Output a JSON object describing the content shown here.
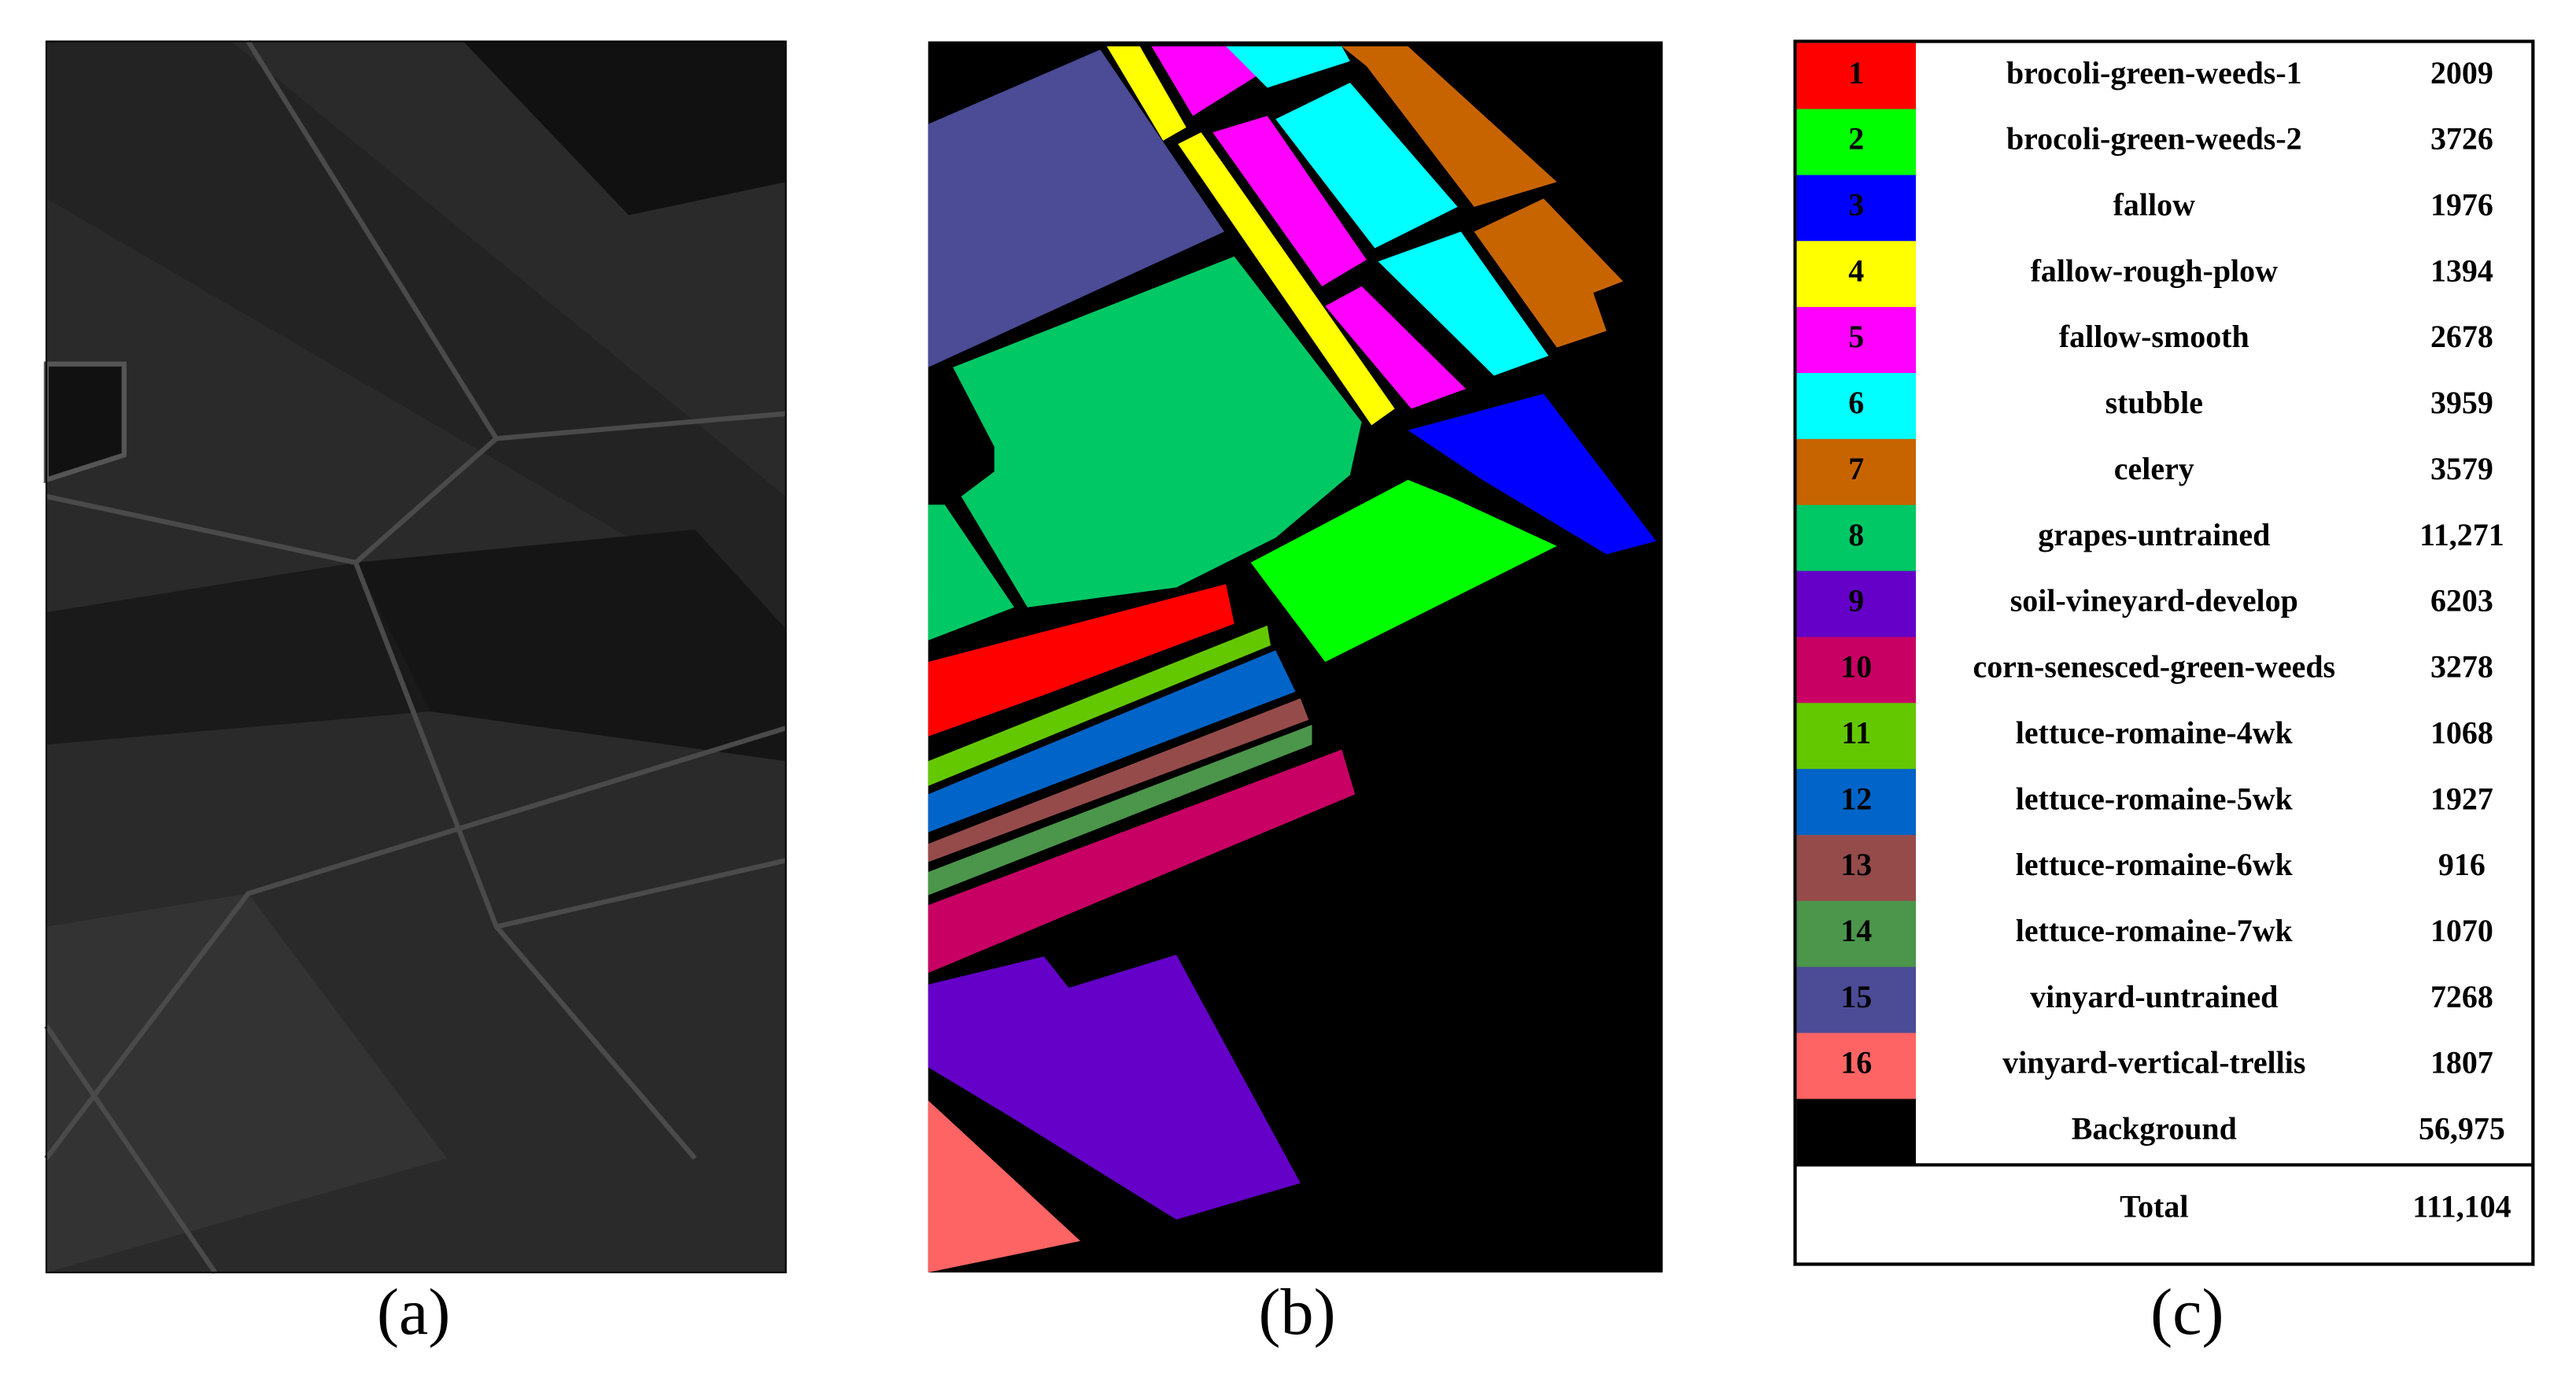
{
  "panels": [
    {
      "label": "(a)"
    },
    {
      "label": "(b)"
    },
    {
      "label": "(c)"
    }
  ],
  "table": {
    "rows": [
      {
        "id": "1",
        "name": "brocoli-green-weeds-1",
        "count": "2009",
        "color": "#ff0000"
      },
      {
        "id": "2",
        "name": "brocoli-green-weeds-2",
        "count": "3726",
        "color": "#00ff00"
      },
      {
        "id": "3",
        "name": "fallow",
        "count": "1976",
        "color": "#0000ff"
      },
      {
        "id": "4",
        "name": "fallow-rough-plow",
        "count": "1394",
        "color": "#ffff00"
      },
      {
        "id": "5",
        "name": "fallow-smooth",
        "count": "2678",
        "color": "#ff00ff"
      },
      {
        "id": "6",
        "name": "stubble",
        "count": "3959",
        "color": "#00ffff"
      },
      {
        "id": "7",
        "name": "celery",
        "count": "3579",
        "color": "#c86400"
      },
      {
        "id": "8",
        "name": "grapes-untrained",
        "count": "11,271",
        "color": "#00c864"
      },
      {
        "id": "9",
        "name": "soil-vineyard-develop",
        "count": "6203",
        "color": "#6400c8"
      },
      {
        "id": "10",
        "name": "corn-senesced-green-weeds",
        "count": "3278",
        "color": "#c80064"
      },
      {
        "id": "11",
        "name": "lettuce-romaine-4wk",
        "count": "1068",
        "color": "#64c800"
      },
      {
        "id": "12",
        "name": "lettuce-romaine-5wk",
        "count": "1927",
        "color": "#0064c8"
      },
      {
        "id": "13",
        "name": "lettuce-romaine-6wk",
        "count": "916",
        "color": "#964b4b"
      },
      {
        "id": "14",
        "name": "lettuce-romaine-7wk",
        "count": "1070",
        "color": "#4b964b"
      },
      {
        "id": "15",
        "name": "vinyard-untrained",
        "count": "7268",
        "color": "#4b4b96"
      },
      {
        "id": "16",
        "name": "vinyard-vertical-trellis",
        "count": "1807",
        "color": "#ff6464"
      }
    ],
    "background": {
      "name": "Background",
      "count": "56,975",
      "color": "#000000"
    },
    "total": {
      "name": "Total",
      "count": "111,104"
    }
  }
}
